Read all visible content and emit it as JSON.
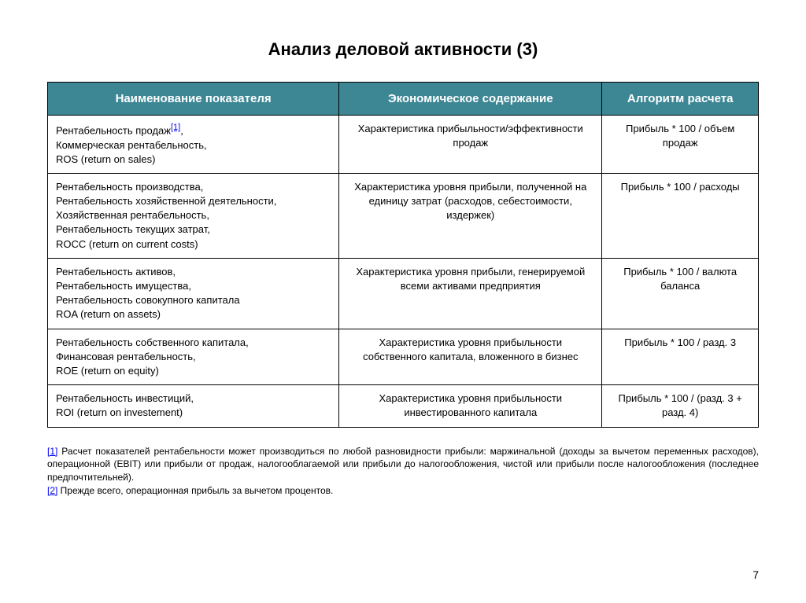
{
  "title": "Анализ деловой активности (3)",
  "table": {
    "columns": [
      "Наименование показателя",
      "Экономическое содержание",
      "Алгоритм расчета"
    ],
    "header_bg": "#3d8795",
    "header_fg": "#ffffff",
    "border_color": "#000000",
    "col_widths_pct": [
      41,
      37,
      22
    ],
    "rows": [
      {
        "name_prefix": "Рентабельность продаж",
        "name_ref": "[1]",
        "name_suffix": ",\nКоммерческая рентабельность,\nROS (return on sales)",
        "content": "Характеристика прибыльности/эффективности продаж",
        "algo": "Прибыль * 100 / объем продаж"
      },
      {
        "name_prefix": "Рентабельность производства,\nРентабельность хозяйственной деятельности,\nХозяйственная рентабельность,\nРентабельность текущих затрат,\nROCC (return on current costs)",
        "name_ref": "",
        "name_suffix": "",
        "content": "Характеристика уровня прибыли, полученной на единицу затрат (расходов, себестоимости, издержек)",
        "algo": "Прибыль * 100 / расходы"
      },
      {
        "name_prefix": "Рентабельность активов,\nРентабельность имущества,\nРентабельность совокупного капитала\nROA (return on assets)",
        "name_ref": "",
        "name_suffix": "",
        "content": "Характеристика уровня прибыли, генерируемой всеми активами предприятия",
        "algo": "Прибыль * 100 / валюта баланса"
      },
      {
        "name_prefix": "Рентабельность собственного капитала,\nФинансовая рентабельность,\nROE (return on equity)",
        "name_ref": "",
        "name_suffix": "",
        "content": "Характеристика уровня прибыльности собственного капитала, вложенного в бизнес",
        "algo": "Прибыль * 100 / разд. 3"
      },
      {
        "name_prefix": "Рентабельность инвестиций,\n  ROI (return on investement)",
        "name_ref": "",
        "name_suffix": "",
        "content": "Характеристика уровня прибыльности инвестированного капитала",
        "algo": "Прибыль * 100 / (разд. 3 + разд. 4)"
      }
    ]
  },
  "footnotes": [
    {
      "ref": "[1]",
      "text": " Расчет показателей рентабельности может производиться по любой разновидности прибыли: маржинальной (доходы за вычетом переменных расходов), операционной (EBIT) или прибыли от продаж, налогооблагаемой или прибыли до налогообложения, чистой или прибыли после налогообложения (последнее предпочтительней)."
    },
    {
      "ref": "[2]",
      "text": " Прежде всего, операционная прибыль за вычетом процентов."
    }
  ],
  "page_number": "7",
  "typography": {
    "title_fontsize": 22,
    "header_fontsize": 15,
    "cell_fontsize": 13,
    "footnote_fontsize": 12
  },
  "background_color": "#ffffff"
}
